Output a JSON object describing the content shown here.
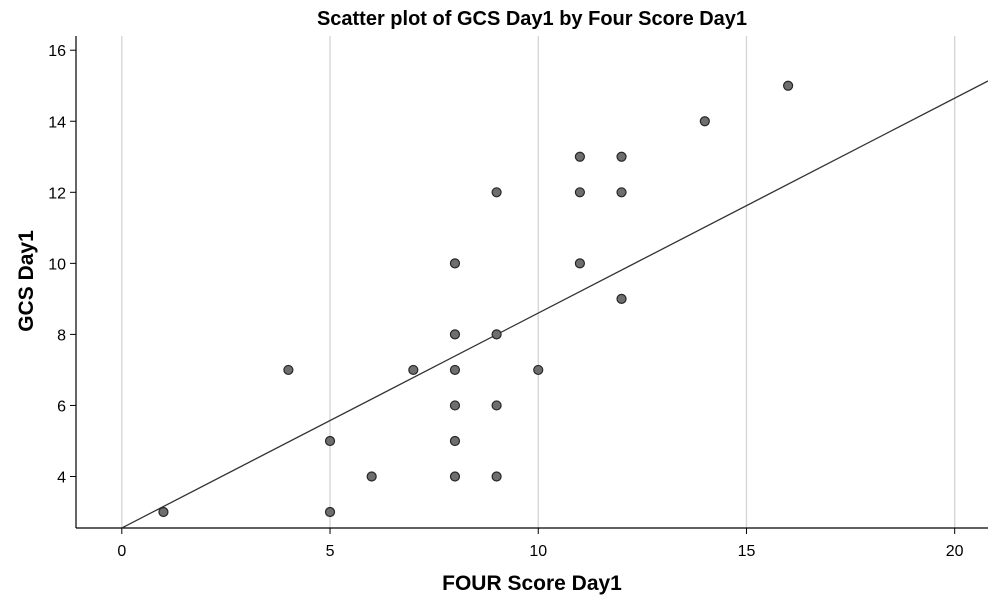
{
  "chart_data": {
    "type": "scatter",
    "title": "Scatter plot of GCS Day1 by Four Score Day1",
    "xlabel": "FOUR Score Day1",
    "ylabel": "GCS Day1",
    "xlim": [
      -1.1,
      20.8
    ],
    "ylim": [
      2.55,
      16.4
    ],
    "xticks": [
      "0",
      "5",
      "10",
      "15",
      "20"
    ],
    "yticks": [
      "4",
      "6",
      "8",
      "10",
      "12",
      "14",
      "16"
    ],
    "grid": "vertical",
    "points": [
      {
        "x": 1,
        "y": 3
      },
      {
        "x": 4,
        "y": 7
      },
      {
        "x": 5,
        "y": 5
      },
      {
        "x": 5,
        "y": 3
      },
      {
        "x": 6,
        "y": 4
      },
      {
        "x": 7,
        "y": 7
      },
      {
        "x": 8,
        "y": 10
      },
      {
        "x": 8,
        "y": 8
      },
      {
        "x": 8,
        "y": 7
      },
      {
        "x": 8,
        "y": 6
      },
      {
        "x": 8,
        "y": 5
      },
      {
        "x": 8,
        "y": 4
      },
      {
        "x": 9,
        "y": 12
      },
      {
        "x": 9,
        "y": 8
      },
      {
        "x": 9,
        "y": 6
      },
      {
        "x": 9,
        "y": 4
      },
      {
        "x": 10,
        "y": 7
      },
      {
        "x": 11,
        "y": 13
      },
      {
        "x": 11,
        "y": 12
      },
      {
        "x": 11,
        "y": 10
      },
      {
        "x": 12,
        "y": 13
      },
      {
        "x": 12,
        "y": 12
      },
      {
        "x": 12,
        "y": 9
      },
      {
        "x": 14,
        "y": 14
      },
      {
        "x": 16,
        "y": 15
      }
    ],
    "fit_line": {
      "intercept": 2.55,
      "slope": 0.605
    },
    "colors": {
      "marker_fill": "#6e6e6e",
      "marker_stroke": "#262626",
      "fit_line": "#333333",
      "grid": "#d4d4d4",
      "axis": "#000000"
    }
  }
}
